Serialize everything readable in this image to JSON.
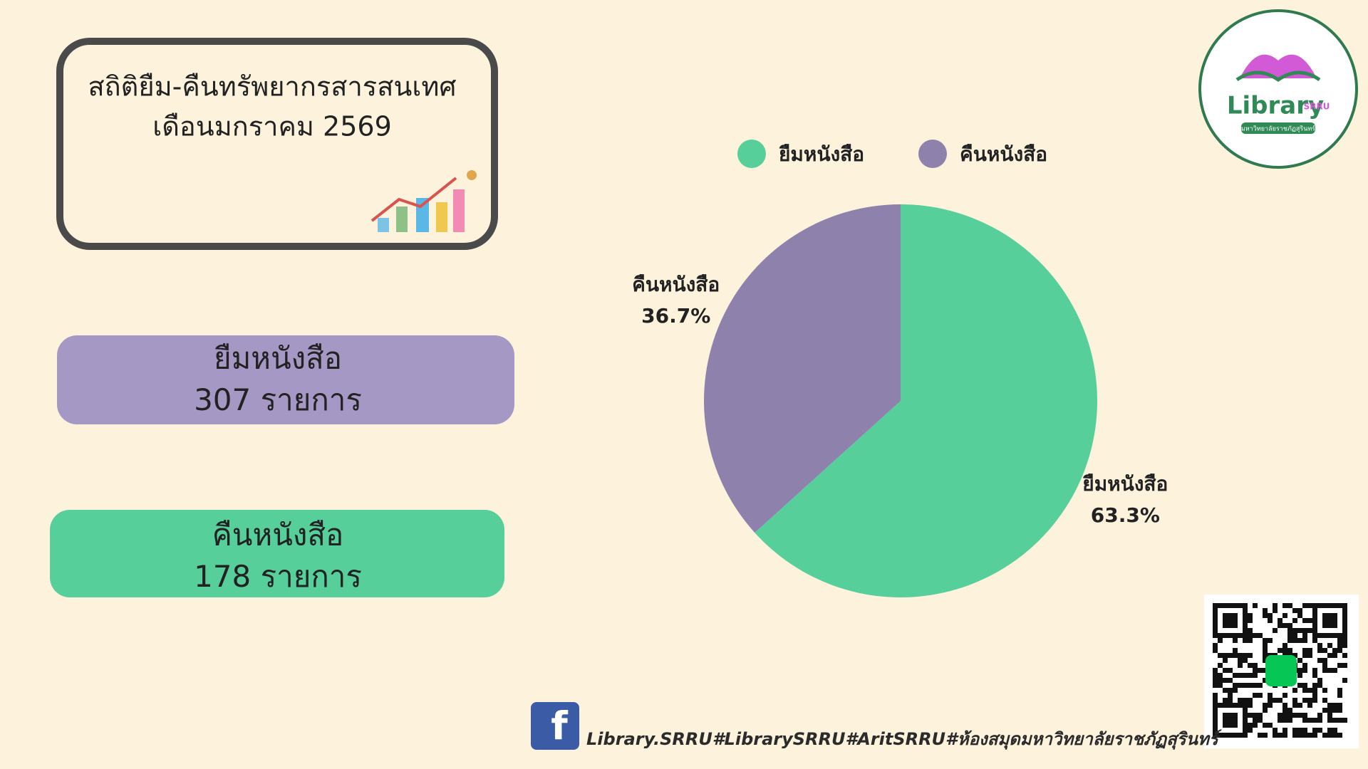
{
  "title": {
    "line1": "สถิติยืม-คืนทรัพยากรสารสนเทศ",
    "line2": "เดือนมกราคม 2569"
  },
  "stats": [
    {
      "label": "ยืมหนังสือ",
      "count": 307,
      "unit": "รายการ"
    },
    {
      "label": "คืนหนังสือ",
      "count": 178,
      "unit": "รายการ"
    }
  ],
  "logo": {
    "text": "Library",
    "sub": "SRRU",
    "caption": "มหาวิทยาลัยราชภัฏสุรินทร์"
  },
  "footer": "Library.SRRU#LibrarySRRU#AritSRRU#ห้องสมุดมหาวิทยาลัยราชภัฏสุรินทร์",
  "chart_data": {
    "type": "pie",
    "categories": [
      "ยืมหนังสือ",
      "คืนหนังสือ"
    ],
    "values": [
      63.3,
      36.7
    ],
    "value_labels": [
      "63.3%",
      "36.7%"
    ],
    "colors": [
      "#56cf9b",
      "#8e82ad"
    ],
    "legend": "top"
  }
}
